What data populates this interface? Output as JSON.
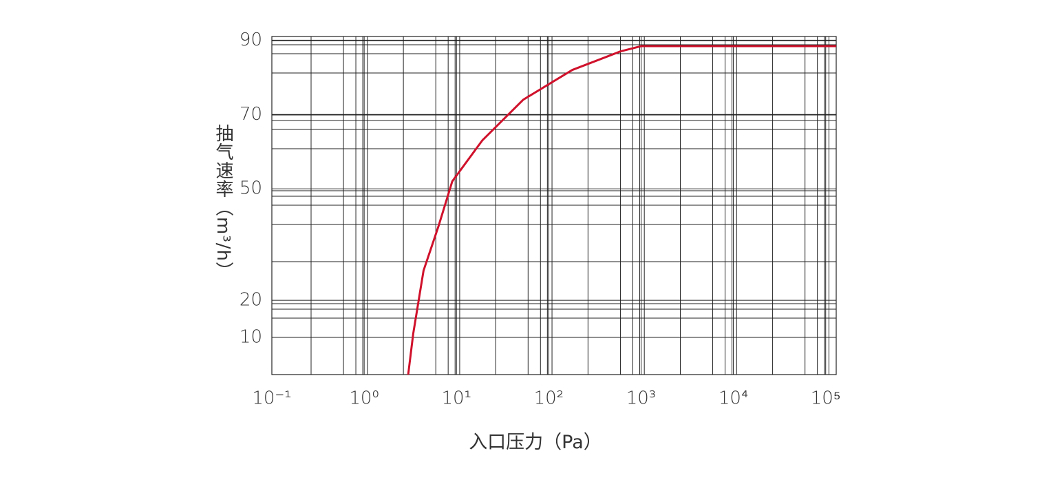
{
  "chart_data": {
    "type": "line",
    "xlabel": "入口压力（Pa）",
    "ylabel": "抽气速率（m³/h）",
    "x": [
      3,
      3.4,
      4.4,
      6.4,
      9,
      19,
      53,
      180,
      600,
      1000,
      130000
    ],
    "series": [
      {
        "color": "#d0112b",
        "values": [
          0,
          11,
          28,
          40,
          52,
          63,
          74,
          82,
          87,
          88.4,
          88.4
        ]
      }
    ],
    "xscale": "log",
    "xlim": [
      0.1,
      130000
    ],
    "xticks": [
      {
        "value": 0.1,
        "label": "10⁻¹"
      },
      {
        "value": 1,
        "label": "10⁰"
      },
      {
        "value": 10,
        "label": "10¹"
      },
      {
        "value": 100,
        "label": "10²"
      },
      {
        "value": 1000,
        "label": "10³"
      },
      {
        "value": 10000,
        "label": "10⁴"
      },
      {
        "value": 100000,
        "label": "10⁵"
      }
    ],
    "ylim": [
      0,
      91
    ],
    "yticks": [
      10,
      20,
      50,
      70,
      90
    ],
    "grid": true
  }
}
